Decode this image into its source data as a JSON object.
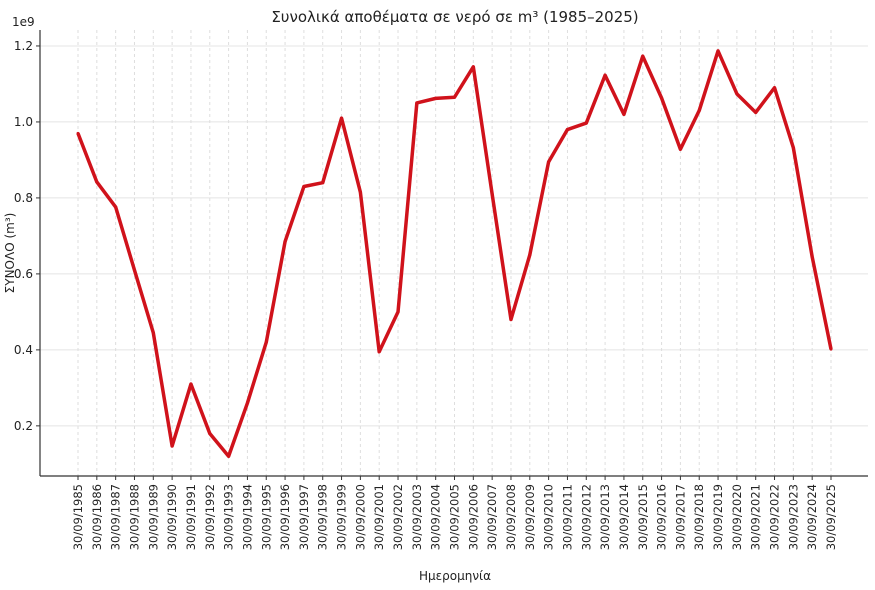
{
  "chart_data": {
    "type": "line",
    "title": "Συνολικά αποθέματα σε νερό σε m³ (1985–2025)",
    "xlabel": "Ημερομηνία",
    "ylabel": "ΣΥΝΟΛΟ (m³)",
    "y_offset_label": "1e9",
    "ylim": [
      0.068,
      1.242
    ],
    "y_ticks": [
      0.2,
      0.4,
      0.6,
      0.8,
      1.0,
      1.2
    ],
    "y_tick_labels": [
      "0.2",
      "0.4",
      "0.6",
      "0.8",
      "1.0",
      "1.2"
    ],
    "grid": true,
    "line_color": "#d0121b",
    "categories": [
      "30/09/1985",
      "30/09/1986",
      "30/09/1987",
      "30/09/1988",
      "30/09/1989",
      "30/09/1990",
      "30/09/1991",
      "30/09/1992",
      "30/09/1993",
      "30/09/1994",
      "30/09/1995",
      "30/09/1996",
      "30/09/1997",
      "30/09/1998",
      "30/09/1999",
      "30/09/2000",
      "30/09/2001",
      "30/09/2002",
      "30/09/2003",
      "30/09/2004",
      "30/09/2005",
      "30/09/2006",
      "30/09/2007",
      "30/09/2008",
      "30/09/2009",
      "30/09/2010",
      "30/09/2011",
      "30/09/2012",
      "30/09/2013",
      "30/09/2014",
      "30/09/2015",
      "30/09/2016",
      "30/09/2017",
      "30/09/2018",
      "30/09/2019",
      "30/09/2020",
      "30/09/2021",
      "30/09/2022",
      "30/09/2023",
      "30/09/2024",
      "30/09/2025"
    ],
    "series": [
      {
        "values": [
          0.97,
          0.842,
          0.776,
          0.61,
          0.445,
          0.147,
          0.31,
          0.18,
          0.12,
          0.26,
          0.42,
          0.685,
          0.83,
          0.84,
          1.01,
          0.815,
          0.395,
          0.5,
          1.05,
          1.062,
          1.065,
          1.145,
          0.81,
          0.48,
          0.65,
          0.895,
          0.98,
          0.997,
          1.123,
          1.02,
          1.173,
          1.063,
          0.928,
          1.03,
          1.187,
          1.074,
          1.025,
          1.09,
          0.932,
          0.645,
          0.402
        ]
      }
    ]
  }
}
